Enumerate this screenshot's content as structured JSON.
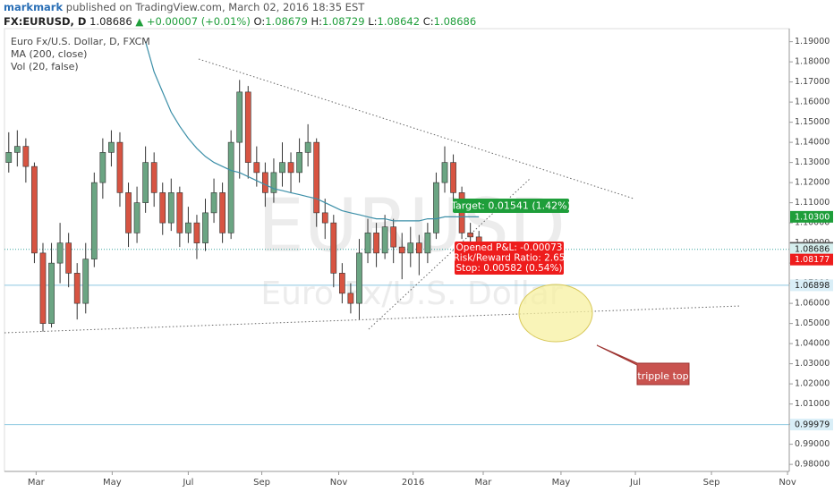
{
  "header": {
    "author": "markmark",
    "published": "published on TradingView.com, March 02, 2016 18:35 EST",
    "symbol": "FX:EURUSD, D",
    "last": "1.08686",
    "change": "▲ +0.00007 (+0.01%)",
    "o_label": "O:",
    "o": "1.08679",
    "h_label": "H:",
    "h": "1.08729",
    "l_label": "L:",
    "l": "1.08642",
    "c_label": "C:",
    "c": "1.08686"
  },
  "chart_data": {
    "type": "candlestick",
    "legend": [
      "Euro Fx/U.S. Dollar, D, FXCM",
      "MA (200, close)",
      "Vol (20, false)"
    ],
    "watermark": {
      "symbol": "EURUSD",
      "description": "Euro Fx/U.S. Dollar"
    },
    "up_color": "#6ba583",
    "down_color": "#d75442",
    "ohlc": [
      [
        1.13,
        1.145,
        1.125,
        1.135
      ],
      [
        1.135,
        1.146,
        1.128,
        1.138
      ],
      [
        1.138,
        1.142,
        1.12,
        1.128
      ],
      [
        1.128,
        1.13,
        1.08,
        1.085
      ],
      [
        1.085,
        1.09,
        1.046,
        1.05
      ],
      [
        1.05,
        1.09,
        1.048,
        1.08
      ],
      [
        1.08,
        1.1,
        1.07,
        1.09
      ],
      [
        1.09,
        1.095,
        1.068,
        1.075
      ],
      [
        1.075,
        1.08,
        1.052,
        1.06
      ],
      [
        1.06,
        1.09,
        1.055,
        1.082
      ],
      [
        1.082,
        1.125,
        1.078,
        1.12
      ],
      [
        1.12,
        1.142,
        1.112,
        1.135
      ],
      [
        1.135,
        1.146,
        1.128,
        1.14
      ],
      [
        1.14,
        1.145,
        1.108,
        1.115
      ],
      [
        1.115,
        1.12,
        1.088,
        1.095
      ],
      [
        1.095,
        1.118,
        1.09,
        1.11
      ],
      [
        1.11,
        1.138,
        1.105,
        1.13
      ],
      [
        1.13,
        1.135,
        1.108,
        1.115
      ],
      [
        1.115,
        1.12,
        1.094,
        1.1
      ],
      [
        1.1,
        1.122,
        1.096,
        1.115
      ],
      [
        1.115,
        1.118,
        1.088,
        1.095
      ],
      [
        1.095,
        1.108,
        1.09,
        1.1
      ],
      [
        1.1,
        1.104,
        1.082,
        1.09
      ],
      [
        1.09,
        1.112,
        1.086,
        1.105
      ],
      [
        1.105,
        1.122,
        1.1,
        1.115
      ],
      [
        1.115,
        1.12,
        1.09,
        1.095
      ],
      [
        1.095,
        1.146,
        1.092,
        1.14
      ],
      [
        1.14,
        1.171,
        1.122,
        1.165
      ],
      [
        1.165,
        1.168,
        1.122,
        1.13
      ],
      [
        1.13,
        1.138,
        1.118,
        1.125
      ],
      [
        1.125,
        1.13,
        1.108,
        1.115
      ],
      [
        1.115,
        1.132,
        1.11,
        1.125
      ],
      [
        1.125,
        1.14,
        1.118,
        1.13
      ],
      [
        1.13,
        1.135,
        1.115,
        1.125
      ],
      [
        1.125,
        1.142,
        1.12,
        1.135
      ],
      [
        1.135,
        1.149,
        1.128,
        1.14
      ],
      [
        1.14,
        1.142,
        1.098,
        1.105
      ],
      [
        1.105,
        1.112,
        1.092,
        1.1
      ],
      [
        1.1,
        1.104,
        1.068,
        1.075
      ],
      [
        1.075,
        1.08,
        1.06,
        1.065
      ],
      [
        1.065,
        1.07,
        1.055,
        1.06
      ],
      [
        1.06,
        1.092,
        1.052,
        1.085
      ],
      [
        1.085,
        1.102,
        1.08,
        1.095
      ],
      [
        1.095,
        1.1,
        1.078,
        1.085
      ],
      [
        1.085,
        1.104,
        1.082,
        1.098
      ],
      [
        1.098,
        1.102,
        1.08,
        1.088
      ],
      [
        1.088,
        1.095,
        1.072,
        1.085
      ],
      [
        1.085,
        1.098,
        1.078,
        1.09
      ],
      [
        1.09,
        1.094,
        1.074,
        1.085
      ],
      [
        1.085,
        1.1,
        1.08,
        1.095
      ],
      [
        1.095,
        1.125,
        1.092,
        1.12
      ],
      [
        1.12,
        1.138,
        1.115,
        1.13
      ],
      [
        1.13,
        1.134,
        1.11,
        1.115
      ],
      [
        1.115,
        1.118,
        1.092,
        1.095
      ],
      [
        1.095,
        1.1,
        1.086,
        1.093
      ],
      [
        1.093,
        1.096,
        1.084,
        1.087
      ]
    ],
    "ma": {
      "name": "MA (200, close)",
      "color": "#3c8fa8",
      "values": [
        null,
        null,
        null,
        null,
        null,
        null,
        null,
        null,
        null,
        null,
        null,
        null,
        null,
        null,
        null,
        null,
        1.19,
        1.175,
        1.165,
        1.155,
        1.148,
        1.142,
        1.137,
        1.133,
        1.13,
        1.128,
        1.126,
        1.125,
        1.123,
        1.121,
        1.119,
        1.117,
        1.116,
        1.115,
        1.114,
        1.113,
        1.112,
        1.11,
        1.108,
        1.106,
        1.105,
        1.104,
        1.103,
        1.102,
        1.102,
        1.101,
        1.101,
        1.101,
        1.101,
        1.102,
        1.102,
        1.103,
        1.103,
        1.103,
        1.103,
        1.103
      ]
    },
    "ylim": [
      0.9765,
      1.1965
    ],
    "yticks": [
      {
        "value": 0.98,
        "label": "0.98000"
      },
      {
        "value": 0.99,
        "label": "0.99000"
      },
      {
        "value": 1.0,
        "label": "1.00000"
      },
      {
        "value": 1.01,
        "label": "1.01000"
      },
      {
        "value": 1.02,
        "label": "1.02000"
      },
      {
        "value": 1.03,
        "label": "1.03000"
      },
      {
        "value": 1.04,
        "label": "1.04000"
      },
      {
        "value": 1.05,
        "label": "1.05000"
      },
      {
        "value": 1.06,
        "label": "1.06000"
      },
      {
        "value": 1.07,
        "label": "1.07000"
      },
      {
        "value": 1.08,
        "label": "1.08000"
      },
      {
        "value": 1.09,
        "label": "1.09000"
      },
      {
        "value": 1.1,
        "label": "1.10000"
      },
      {
        "value": 1.11,
        "label": "1.11000"
      },
      {
        "value": 1.12,
        "label": "1.12000"
      },
      {
        "value": 1.13,
        "label": "1.13000"
      },
      {
        "value": 1.14,
        "label": "1.14000"
      },
      {
        "value": 1.15,
        "label": "1.15000"
      },
      {
        "value": 1.16,
        "label": "1.16000"
      },
      {
        "value": 1.17,
        "label": "1.17000"
      },
      {
        "value": 1.18,
        "label": "1.18000"
      },
      {
        "value": 1.19,
        "label": "1.19000"
      }
    ],
    "xlim": [
      -0.5,
      91.3
    ],
    "xticks": [
      {
        "value": 3.2,
        "label": "Mar"
      },
      {
        "value": 12.1,
        "label": "May"
      },
      {
        "value": 21,
        "label": "Jul"
      },
      {
        "value": 29.6,
        "label": "Sep"
      },
      {
        "value": 38.6,
        "label": "Nov"
      },
      {
        "value": 47.3,
        "label": "2016"
      },
      {
        "value": 55.5,
        "label": "Mar"
      },
      {
        "value": 64.6,
        "label": "May"
      },
      {
        "value": 73.3,
        "label": "Jul"
      },
      {
        "value": 82.2,
        "label": "Sep"
      },
      {
        "value": 91.1,
        "label": "Nov"
      }
    ],
    "price_lines": [
      {
        "value": 1.06898,
        "color": "#8cc8e0"
      },
      {
        "value": 1.08686,
        "color": "#3aa6a0"
      },
      {
        "value": 0.99979,
        "color": "#8cc8e0"
      }
    ],
    "price_labels": [
      {
        "value": 1.103,
        "label": "1.10300",
        "color": "#1e9e3a",
        "text_color": "#ffffff"
      },
      {
        "value": 1.08759,
        "label": "1.08759",
        "color": "#555555",
        "text_color": "#ffffff"
      },
      {
        "value": 1.08686,
        "label": "1.08686",
        "color": "#d6efee",
        "text_color": "#222222"
      },
      {
        "value": 1.08177,
        "label": "1.08177",
        "color": "#ee1c1c",
        "text_color": "#ffffff"
      },
      {
        "value": 1.06898,
        "label": "1.06898",
        "color": "#d9eef7",
        "text_color": "#222222"
      },
      {
        "value": 0.99979,
        "label": "0.99979",
        "color": "#d9eef7",
        "text_color": "#222222"
      }
    ],
    "annotations": {
      "target": "Target: 0.01541 (1.42%)",
      "pnl": "Opened P&L: -0.00073",
      "ratio": "Risk/Reward Ratio: 2.65",
      "stop": "Stop: 0.00582 (0.54%)",
      "callout": "tripple top"
    },
    "grid": false
  }
}
